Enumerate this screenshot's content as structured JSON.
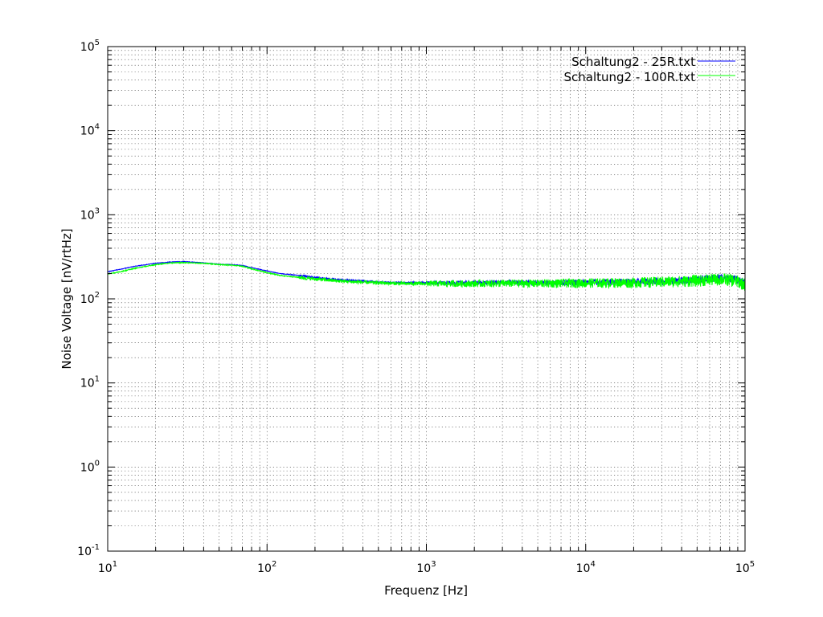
{
  "chart_data": {
    "type": "line",
    "title": "",
    "xlabel": "Frequenz [Hz]",
    "ylabel": "Noise Voltage [nV/rtHz]",
    "xscale": "log",
    "yscale": "log",
    "xlim": [
      10,
      100000
    ],
    "ylim": [
      0.1,
      100000
    ],
    "grid": true,
    "legend_position": "top-right",
    "x_ticks": [
      {
        "base": "10",
        "exp": "1",
        "value": 10
      },
      {
        "base": "10",
        "exp": "2",
        "value": 100
      },
      {
        "base": "10",
        "exp": "3",
        "value": 1000
      },
      {
        "base": "10",
        "exp": "4",
        "value": 10000
      },
      {
        "base": "10",
        "exp": "5",
        "value": 100000
      }
    ],
    "y_ticks": [
      {
        "base": "10",
        "exp": "-1",
        "value": 0.1
      },
      {
        "base": "10",
        "exp": "0",
        "value": 1
      },
      {
        "base": "10",
        "exp": "1",
        "value": 10
      },
      {
        "base": "10",
        "exp": "2",
        "value": 100
      },
      {
        "base": "10",
        "exp": "3",
        "value": 1000
      },
      {
        "base": "10",
        "exp": "4",
        "value": 10000
      },
      {
        "base": "10",
        "exp": "5",
        "value": 100000
      }
    ],
    "series": [
      {
        "name": "Schaltung2 - 25R.txt",
        "color": "#0000ff",
        "noise_band": 0.05,
        "x": [
          10,
          12,
          15,
          20,
          25,
          30,
          40,
          50,
          60,
          70,
          80,
          100,
          120,
          150,
          200,
          250,
          300,
          400,
          500,
          700,
          1000,
          1500,
          2000,
          3000,
          5000,
          7000,
          10000,
          15000,
          20000,
          30000,
          40000,
          50000,
          60000,
          70000,
          80000,
          90000,
          100000,
          110000
        ],
        "y": [
          210,
          225,
          245,
          265,
          275,
          278,
          268,
          258,
          255,
          250,
          235,
          215,
          200,
          192,
          180,
          172,
          168,
          162,
          158,
          155,
          155,
          155,
          155,
          156,
          156,
          157,
          158,
          159,
          160,
          163,
          166,
          170,
          175,
          178,
          176,
          168,
          155,
          140
        ]
      },
      {
        "name": "Schaltung2 - 100R.txt",
        "color": "#00ff00",
        "noise_band": 0.08,
        "x": [
          10,
          12,
          15,
          20,
          25,
          30,
          40,
          50,
          60,
          70,
          80,
          100,
          120,
          150,
          200,
          250,
          300,
          400,
          500,
          700,
          1000,
          1500,
          2000,
          3000,
          5000,
          7000,
          10000,
          15000,
          20000,
          30000,
          40000,
          50000,
          60000,
          70000,
          80000,
          90000,
          100000,
          110000
        ],
        "y": [
          198,
          210,
          232,
          255,
          268,
          270,
          265,
          256,
          252,
          245,
          228,
          205,
          190,
          182,
          172,
          166,
          162,
          158,
          155,
          152,
          152,
          152,
          152,
          153,
          153,
          154,
          155,
          156,
          157,
          160,
          163,
          166,
          170,
          172,
          170,
          162,
          150,
          135
        ]
      }
    ]
  }
}
